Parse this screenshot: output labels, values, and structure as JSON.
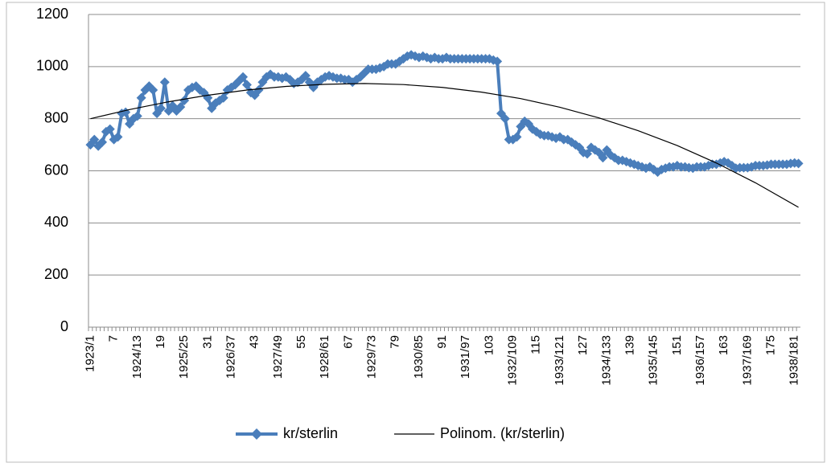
{
  "chart_data": {
    "type": "line",
    "categories": [
      "1923/1",
      null,
      null,
      null,
      null,
      null,
      "7",
      null,
      null,
      null,
      null,
      null,
      "1924/13",
      null,
      null,
      null,
      null,
      null,
      "19",
      null,
      null,
      null,
      null,
      null,
      "1925/25",
      null,
      null,
      null,
      null,
      null,
      "31",
      null,
      null,
      null,
      null,
      null,
      "1926/37",
      null,
      null,
      null,
      null,
      null,
      "43",
      null,
      null,
      null,
      null,
      null,
      "1927/49",
      null,
      null,
      null,
      null,
      null,
      "55",
      null,
      null,
      null,
      null,
      null,
      "1928/61",
      null,
      null,
      null,
      null,
      null,
      "67",
      null,
      null,
      null,
      null,
      null,
      "1929/73",
      null,
      null,
      null,
      null,
      null,
      "79",
      null,
      null,
      null,
      null,
      null,
      "1930/85",
      null,
      null,
      null,
      null,
      null,
      "91",
      null,
      null,
      null,
      null,
      null,
      "1931/97",
      null,
      null,
      null,
      null,
      null,
      "103",
      null,
      null,
      null,
      null,
      null,
      "1932/109",
      null,
      null,
      null,
      null,
      null,
      "115",
      null,
      null,
      null,
      null,
      null,
      "1933/121",
      null,
      null,
      null,
      null,
      null,
      "127",
      null,
      null,
      null,
      null,
      null,
      "1934/133",
      null,
      null,
      null,
      null,
      null,
      "139",
      null,
      null,
      null,
      null,
      null,
      "1935/145",
      null,
      null,
      null,
      null,
      null,
      "151",
      null,
      null,
      null,
      null,
      null,
      "1936/157",
      null,
      null,
      null,
      null,
      null,
      "163",
      null,
      null,
      null,
      null,
      null,
      "1937/169",
      null,
      null,
      null,
      null,
      null,
      "175",
      null,
      null,
      null,
      null,
      null,
      "1938/181",
      null
    ],
    "series": [
      {
        "name": "kr/sterlin",
        "color": "#4a7ebb",
        "values": [
          700,
          720,
          695,
          710,
          750,
          760,
          720,
          730,
          820,
          825,
          780,
          800,
          810,
          880,
          910,
          925,
          910,
          820,
          840,
          940,
          830,
          850,
          830,
          845,
          870,
          910,
          920,
          925,
          910,
          900,
          880,
          840,
          860,
          870,
          880,
          910,
          920,
          930,
          945,
          960,
          930,
          900,
          890,
          910,
          940,
          960,
          970,
          960,
          960,
          955,
          960,
          950,
          935,
          940,
          950,
          965,
          940,
          920,
          940,
          950,
          960,
          965,
          960,
          955,
          955,
          950,
          950,
          940,
          950,
          960,
          975,
          990,
          990,
          990,
          995,
          1000,
          1010,
          1010,
          1010,
          1020,
          1030,
          1040,
          1045,
          1040,
          1035,
          1040,
          1035,
          1030,
          1035,
          1030,
          1030,
          1035,
          1030,
          1030,
          1030,
          1030,
          1030,
          1030,
          1030,
          1030,
          1030,
          1030,
          1030,
          1025,
          1020,
          820,
          800,
          720,
          720,
          730,
          770,
          790,
          780,
          760,
          750,
          740,
          735,
          735,
          730,
          725,
          730,
          720,
          720,
          710,
          700,
          690,
          670,
          665,
          690,
          680,
          670,
          650,
          680,
          660,
          650,
          640,
          640,
          635,
          630,
          625,
          620,
          615,
          610,
          615,
          605,
          595,
          605,
          610,
          615,
          615,
          620,
          615,
          615,
          612,
          610,
          615,
          615,
          615,
          620,
          625,
          625,
          630,
          635,
          630,
          620,
          610,
          612,
          612,
          612,
          615,
          620,
          620,
          620,
          622,
          625,
          625,
          625,
          625,
          625,
          628,
          630,
          628
        ]
      }
    ],
    "trendline": {
      "name": "Polinom. (kr/sterlin)",
      "color": "#000000",
      "x": [
        1,
        11,
        21,
        31,
        41,
        51,
        61,
        71,
        81,
        91,
        101,
        111,
        121,
        131,
        141,
        151,
        161,
        171,
        182
      ],
      "values": [
        800,
        835,
        865,
        890,
        910,
        924,
        932,
        935,
        931,
        920,
        902,
        877,
        844,
        803,
        754,
        697,
        630,
        554,
        460
      ]
    },
    "ylim": [
      0,
      1200
    ],
    "yticks": [
      0,
      200,
      400,
      600,
      800,
      1000,
      1200
    ],
    "grid": true,
    "legend": "bottom"
  }
}
